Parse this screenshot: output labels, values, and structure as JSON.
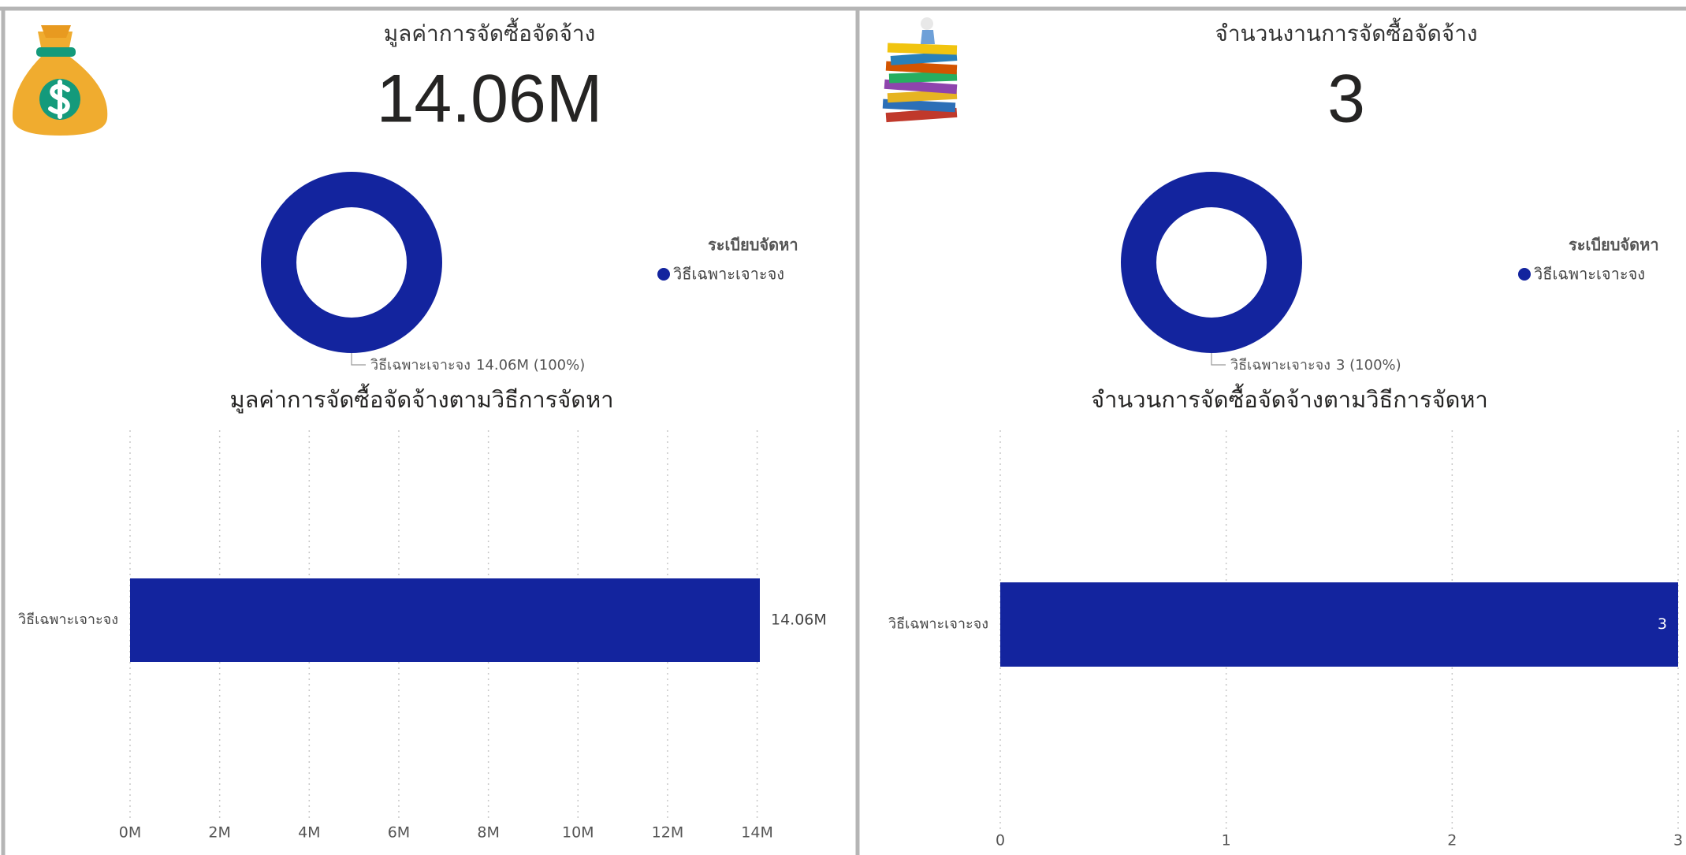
{
  "cards": [
    {
      "title": "มูลค่าการจัดซื้อจัดจ้าง",
      "value": "14.06M"
    },
    {
      "title": "จำนวนงานการจัดซื้อจัดจ้าง",
      "value": "3"
    }
  ],
  "chart_data": [
    {
      "type": "pie",
      "legend_title": "ระเบียบจัดหา",
      "categories": [
        "วิธีเฉพาะเจาะจง"
      ],
      "values": [
        14060000
      ],
      "value_labels": [
        "14.06M (100%)"
      ],
      "color": "#13249e",
      "legend": "right"
    },
    {
      "type": "bar",
      "orientation": "horizontal",
      "title": "มูลค่าการจัดซื้อจัดจ้างตามวิธีการจัดหา",
      "categories": [
        "วิธีเฉพาะเจาะจง"
      ],
      "values": [
        14060000
      ],
      "value_labels": [
        "14.06M"
      ],
      "color": "#13249e",
      "xlim": [
        0,
        14060000
      ],
      "xticks": [
        {
          "value": 0,
          "label": "0M"
        },
        {
          "value": 2000000,
          "label": "2M"
        },
        {
          "value": 4000000,
          "label": "4M"
        },
        {
          "value": 6000000,
          "label": "6M"
        },
        {
          "value": 8000000,
          "label": "8M"
        },
        {
          "value": 10000000,
          "label": "10M"
        },
        {
          "value": 12000000,
          "label": "12M"
        },
        {
          "value": 14000000,
          "label": "14M"
        }
      ],
      "grid": true
    },
    {
      "type": "pie",
      "legend_title": "ระเบียบจัดหา",
      "categories": [
        "วิธีเฉพาะเจาะจง"
      ],
      "values": [
        3
      ],
      "value_labels": [
        "3 (100%)"
      ],
      "color": "#13249e",
      "legend": "right"
    },
    {
      "type": "bar",
      "orientation": "horizontal",
      "title": "จำนวนการจัดซื้อจัดจ้างตามวิธีการจัดหา",
      "categories": [
        "วิธีเฉพาะเจาะจง"
      ],
      "values": [
        3
      ],
      "color": "#13249e",
      "xlim": [
        0,
        3
      ],
      "xticks": [
        0,
        1,
        2,
        3
      ],
      "grid": true
    }
  ]
}
